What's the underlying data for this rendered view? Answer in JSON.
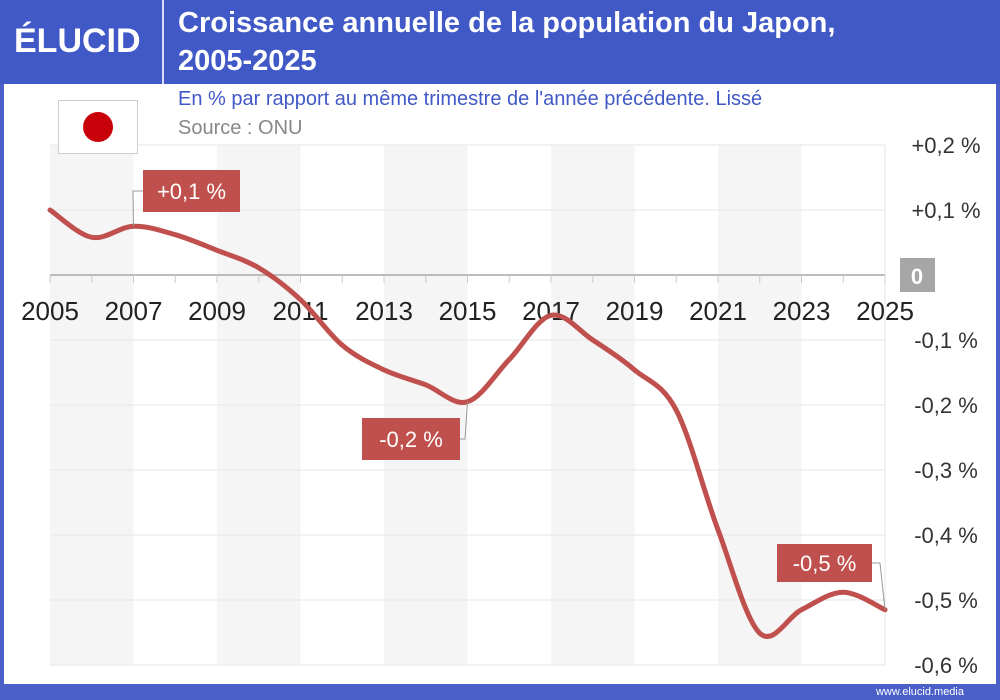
{
  "header": {
    "logo": "ÉLUCID",
    "title_line1": "Croissance annuelle de la population du Japon,",
    "title_line2": "2005-2025"
  },
  "subtitle": "En % par rapport au même trimestre de l'année précédente. Lissé",
  "source": "Source : ONU",
  "flag": "japan-flag",
  "footer": "www.elucid.media",
  "colors": {
    "header": "#4159c6",
    "line": "#c0504d",
    "label_bg": "#c0504d",
    "zero_bg": "#a6a6a6"
  },
  "chart_data": {
    "type": "line",
    "title": "Croissance annuelle de la population du Japon, 2005-2025",
    "xlim": [
      2005,
      2025
    ],
    "ylim": [
      -0.6,
      0.2
    ],
    "grid": true,
    "x_ticks": [
      "2005",
      "2007",
      "2009",
      "2011",
      "2013",
      "2015",
      "2017",
      "2019",
      "2021",
      "2023",
      "2025"
    ],
    "y_ticks": [
      {
        "v": 0.2,
        "label": "+0,2 %"
      },
      {
        "v": 0.1,
        "label": "+0,1 %"
      },
      {
        "v": 0,
        "label": "0"
      },
      {
        "v": -0.1,
        "label": "-0,1 %"
      },
      {
        "v": -0.2,
        "label": "-0,2 %"
      },
      {
        "v": -0.3,
        "label": "-0,3 %"
      },
      {
        "v": -0.4,
        "label": "-0,4 %"
      },
      {
        "v": -0.5,
        "label": "-0,5 %"
      },
      {
        "v": -0.6,
        "label": "-0,6 %"
      }
    ],
    "x": [
      2005,
      2006,
      2007,
      2008,
      2009,
      2010,
      2011,
      2012,
      2013,
      2014,
      2015,
      2016,
      2017,
      2018,
      2019,
      2020,
      2021,
      2022,
      2023,
      2024,
      2025
    ],
    "values": [
      0.1,
      0.058,
      0.075,
      0.062,
      0.038,
      0.011,
      -0.038,
      -0.108,
      -0.146,
      -0.169,
      -0.195,
      -0.13,
      -0.062,
      -0.1,
      -0.146,
      -0.208,
      -0.392,
      -0.551,
      -0.515,
      -0.488,
      -0.515
    ],
    "annotations": [
      {
        "x": 2007,
        "y": 0.075,
        "label": "+0,1 %"
      },
      {
        "x": 2015,
        "y": -0.195,
        "label": "-0,2 %"
      },
      {
        "x": 2025,
        "y": -0.515,
        "label": "-0,5 %"
      }
    ]
  }
}
